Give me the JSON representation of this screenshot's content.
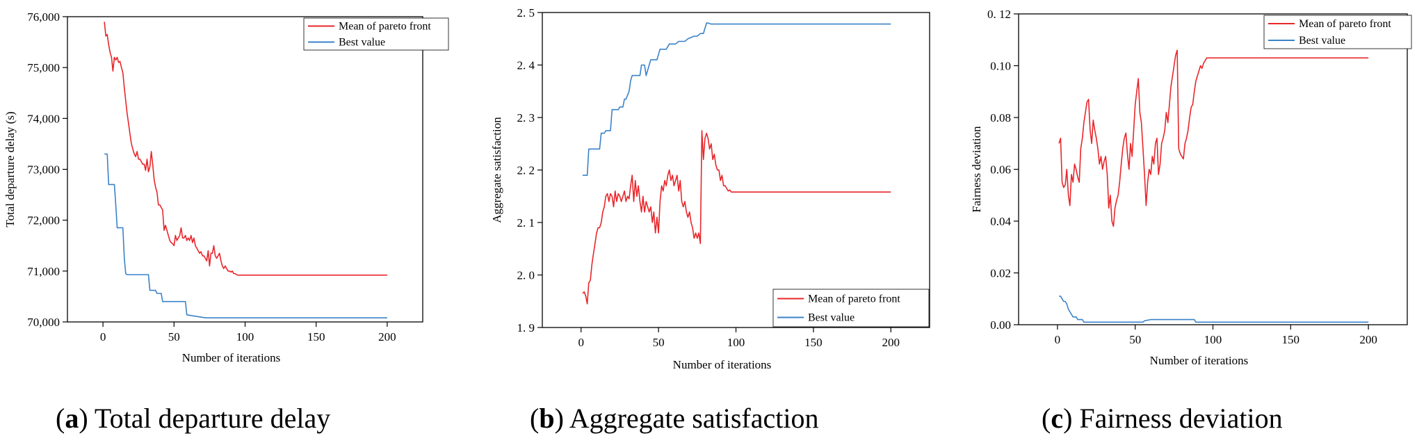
{
  "colors": {
    "mean": "#e8262a",
    "best": "#3a82c8",
    "axis": "#000000"
  },
  "chart_data": [
    {
      "id": "a",
      "type": "line",
      "title": "",
      "xlabel": "Number of iterations",
      "ylabel": "Total departure delay (s)",
      "xlim": [
        -25,
        225
      ],
      "ylim": [
        70000,
        76000
      ],
      "xticks": [
        0,
        50,
        100,
        150,
        200
      ],
      "xtick_labels": [
        "0",
        "50",
        "100",
        "150",
        "200"
      ],
      "yticks": [
        70000,
        71000,
        72000,
        73000,
        74000,
        75000,
        76000
      ],
      "ytick_labels": [
        "70,000",
        "71,000",
        "72,000",
        "73,000",
        "74,000",
        "75,000",
        "76,000"
      ],
      "legend_position": "top-right",
      "legend": [
        "Mean of pareto front",
        "Best value"
      ],
      "caption_letter": "a",
      "caption_text": " Total departure delay",
      "series": [
        {
          "name": "Mean of pareto front",
          "x": [
            1,
            2,
            3,
            4,
            5,
            6,
            7,
            8,
            9,
            10,
            11,
            12,
            13,
            14,
            15,
            16,
            17,
            18,
            19,
            20,
            21,
            22,
            23,
            24,
            25,
            26,
            27,
            28,
            29,
            30,
            31,
            32,
            33,
            34,
            35,
            36,
            37,
            38,
            39,
            40,
            41,
            42,
            43,
            44,
            45,
            46,
            47,
            48,
            49,
            50,
            51,
            52,
            53,
            54,
            55,
            56,
            57,
            58,
            59,
            60,
            61,
            62,
            63,
            64,
            65,
            66,
            67,
            68,
            69,
            70,
            71,
            72,
            73,
            74,
            75,
            76,
            77,
            78,
            79,
            80,
            81,
            82,
            83,
            84,
            85,
            86,
            87,
            88,
            89,
            90,
            91,
            92,
            93,
            94,
            95,
            96,
            97,
            98,
            99,
            100,
            101,
            102,
            103,
            104,
            105,
            200
          ],
          "values": [
            75900,
            75620,
            75650,
            75450,
            75300,
            75200,
            74930,
            75200,
            75150,
            75200,
            75100,
            75120,
            75000,
            74900,
            74600,
            74350,
            74100,
            73900,
            73700,
            73500,
            73400,
            73300,
            73250,
            73350,
            73200,
            73200,
            73150,
            73100,
            73100,
            72980,
            73200,
            72950,
            73050,
            73350,
            73100,
            72800,
            72650,
            72550,
            72300,
            72300,
            72250,
            72200,
            71800,
            71900,
            71800,
            71700,
            71600,
            71560,
            71540,
            71500,
            71700,
            71600,
            71650,
            71700,
            71850,
            71650,
            71650,
            71700,
            71600,
            71650,
            71600,
            71700,
            71560,
            71650,
            71500,
            71450,
            71400,
            71350,
            71380,
            71300,
            71300,
            71250,
            71200,
            71400,
            71100,
            71350,
            71350,
            71500,
            71300,
            71250,
            71300,
            71350,
            71200,
            71100,
            71050,
            71100,
            71050,
            71000,
            71000,
            70980,
            71000,
            70950,
            70950,
            70930,
            70920,
            70920,
            70920,
            70920,
            70920,
            70920,
            70920,
            70920,
            70920,
            70920,
            70920,
            70920
          ]
        },
        {
          "name": "Best value",
          "x": [
            1,
            3,
            4,
            5,
            8,
            9,
            10,
            14,
            15,
            16,
            17,
            18,
            19,
            31,
            32,
            33,
            37,
            38,
            39,
            41,
            42,
            43,
            44,
            58,
            59,
            72,
            200
          ],
          "values": [
            73300,
            73300,
            72700,
            72700,
            72700,
            72300,
            71850,
            71850,
            71250,
            70950,
            70930,
            70930,
            70930,
            70930,
            70930,
            70620,
            70620,
            70560,
            70560,
            70560,
            70400,
            70400,
            70400,
            70400,
            70140,
            70080,
            70080
          ]
        }
      ]
    },
    {
      "id": "b",
      "type": "line",
      "title": "",
      "xlabel": "Number of iterations",
      "ylabel": "Aggregate satisfaction",
      "xlim": [
        -25,
        225
      ],
      "ylim": [
        1.9,
        2.5
      ],
      "xticks": [
        0,
        50,
        100,
        150,
        200
      ],
      "xtick_labels": [
        "0",
        "50",
        "100",
        "150",
        "200"
      ],
      "yticks": [
        1.9,
        2.0,
        2.1,
        2.2,
        2.3,
        2.4,
        2.5
      ],
      "ytick_labels": [
        "1. 9",
        "2. 0",
        "2. 1",
        "2. 2",
        "2. 3",
        "2. 4",
        "2. 5"
      ],
      "legend_position": "bottom-right",
      "legend": [
        "Mean of pareto front",
        "Best value"
      ],
      "caption_letter": "b",
      "caption_text": " Aggregate satisfaction",
      "series": [
        {
          "name": "Mean of pareto front",
          "x": [
            1,
            2,
            3,
            4,
            5,
            6,
            7,
            8,
            9,
            10,
            11,
            12,
            13,
            14,
            15,
            16,
            17,
            18,
            19,
            20,
            21,
            22,
            23,
            24,
            25,
            26,
            27,
            28,
            29,
            30,
            31,
            32,
            33,
            34,
            35,
            36,
            37,
            38,
            39,
            40,
            41,
            42,
            43,
            44,
            45,
            46,
            47,
            48,
            49,
            50,
            51,
            52,
            53,
            54,
            55,
            56,
            57,
            58,
            59,
            60,
            61,
            62,
            63,
            64,
            65,
            66,
            67,
            68,
            69,
            70,
            71,
            72,
            73,
            74,
            75,
            76,
            77,
            78,
            79,
            80,
            81,
            82,
            83,
            84,
            85,
            86,
            87,
            88,
            89,
            90,
            91,
            92,
            93,
            94,
            95,
            96,
            97,
            98,
            99,
            100,
            101,
            102,
            103,
            104,
            105,
            200
          ],
          "values": [
            1.965,
            1.968,
            1.96,
            1.945,
            1.985,
            1.99,
            2.02,
            2.04,
            2.06,
            2.08,
            2.09,
            2.09,
            2.1,
            2.12,
            2.13,
            2.15,
            2.155,
            2.14,
            2.155,
            2.15,
            2.13,
            2.16,
            2.14,
            2.155,
            2.15,
            2.14,
            2.15,
            2.16,
            2.14,
            2.15,
            2.145,
            2.17,
            2.19,
            2.14,
            2.18,
            2.15,
            2.17,
            2.14,
            2.12,
            2.15,
            2.12,
            2.14,
            2.13,
            2.12,
            2.13,
            2.1,
            2.12,
            2.08,
            2.11,
            2.08,
            2.14,
            2.17,
            2.16,
            2.18,
            2.17,
            2.19,
            2.2,
            2.18,
            2.19,
            2.17,
            2.18,
            2.19,
            2.16,
            2.18,
            2.14,
            2.13,
            2.14,
            2.12,
            2.11,
            2.12,
            2.1,
            2.09,
            2.07,
            2.08,
            2.07,
            2.08,
            2.06,
            2.275,
            2.22,
            2.26,
            2.27,
            2.26,
            2.24,
            2.25,
            2.22,
            2.23,
            2.21,
            2.2,
            2.2,
            2.18,
            2.19,
            2.17,
            2.17,
            2.165,
            2.16,
            2.162,
            2.158,
            2.158,
            2.158,
            2.158,
            2.158,
            2.158,
            2.158,
            2.158,
            2.158,
            2.158
          ]
        },
        {
          "name": "Best value",
          "x": [
            1,
            4,
            5,
            8,
            9,
            12,
            13,
            15,
            16,
            19,
            20,
            24,
            25,
            26,
            27,
            28,
            29,
            31,
            32,
            33,
            35,
            36,
            37,
            38,
            39,
            41,
            42,
            44,
            45,
            46,
            47,
            49,
            51,
            52,
            54,
            55,
            57,
            59,
            61,
            63,
            67,
            69,
            73,
            75,
            77,
            79,
            80,
            81,
            82,
            84,
            200
          ],
          "values": [
            2.19,
            2.19,
            2.24,
            2.24,
            2.24,
            2.24,
            2.27,
            2.27,
            2.275,
            2.275,
            2.315,
            2.315,
            2.32,
            2.32,
            2.32,
            2.335,
            2.335,
            2.35,
            2.37,
            2.38,
            2.38,
            2.38,
            2.38,
            2.38,
            2.4,
            2.4,
            2.38,
            2.4,
            2.41,
            2.41,
            2.41,
            2.41,
            2.43,
            2.43,
            2.43,
            2.43,
            2.44,
            2.44,
            2.44,
            2.445,
            2.445,
            2.45,
            2.455,
            2.455,
            2.46,
            2.46,
            2.47,
            2.48,
            2.48,
            2.478,
            2.478
          ]
        }
      ]
    },
    {
      "id": "c",
      "type": "line",
      "title": "",
      "xlabel": "Number of iterations",
      "ylabel": "Fairness deviation",
      "xlim": [
        -25,
        225
      ],
      "ylim": [
        0,
        0.12
      ],
      "xticks": [
        0,
        50,
        100,
        150,
        200
      ],
      "xtick_labels": [
        "0",
        "50",
        "100",
        "150",
        "200"
      ],
      "yticks": [
        0,
        0.02,
        0.04,
        0.06,
        0.08,
        0.1,
        0.12
      ],
      "ytick_labels": [
        "0.00",
        "0.02",
        "0.04",
        "0.06",
        "0.08",
        "0.10",
        "0. 12"
      ],
      "legend_position": "top-right",
      "legend": [
        "Mean of pareto front",
        "Best value"
      ],
      "caption_letter": "c",
      "caption_text": " Fairness deviation",
      "series": [
        {
          "name": "Mean of pareto front",
          "x": [
            1,
            2,
            3,
            4,
            5,
            6,
            7,
            8,
            9,
            10,
            11,
            12,
            13,
            14,
            15,
            16,
            17,
            18,
            19,
            20,
            21,
            22,
            23,
            24,
            25,
            26,
            27,
            28,
            29,
            30,
            31,
            32,
            33,
            34,
            35,
            36,
            37,
            38,
            39,
            40,
            41,
            42,
            43,
            44,
            45,
            46,
            47,
            48,
            49,
            50,
            51,
            52,
            53,
            54,
            55,
            56,
            57,
            58,
            59,
            60,
            61,
            62,
            63,
            64,
            65,
            66,
            67,
            68,
            69,
            70,
            71,
            72,
            73,
            74,
            75,
            76,
            77,
            78,
            79,
            80,
            81,
            82,
            83,
            84,
            85,
            86,
            87,
            88,
            89,
            90,
            91,
            92,
            93,
            94,
            95,
            96,
            97,
            98,
            99,
            100,
            101,
            102,
            103,
            104,
            105,
            200
          ],
          "values": [
            0.07,
            0.072,
            0.055,
            0.053,
            0.054,
            0.06,
            0.05,
            0.046,
            0.058,
            0.055,
            0.062,
            0.06,
            0.057,
            0.055,
            0.068,
            0.072,
            0.078,
            0.082,
            0.086,
            0.087,
            0.075,
            0.07,
            0.079,
            0.075,
            0.072,
            0.068,
            0.062,
            0.065,
            0.06,
            0.063,
            0.065,
            0.058,
            0.045,
            0.05,
            0.04,
            0.038,
            0.045,
            0.048,
            0.05,
            0.055,
            0.062,
            0.068,
            0.072,
            0.074,
            0.066,
            0.06,
            0.07,
            0.065,
            0.075,
            0.085,
            0.09,
            0.095,
            0.082,
            0.078,
            0.068,
            0.058,
            0.046,
            0.055,
            0.06,
            0.058,
            0.065,
            0.062,
            0.07,
            0.072,
            0.058,
            0.062,
            0.07,
            0.072,
            0.075,
            0.082,
            0.078,
            0.085,
            0.092,
            0.096,
            0.1,
            0.104,
            0.106,
            0.068,
            0.066,
            0.065,
            0.064,
            0.07,
            0.072,
            0.075,
            0.08,
            0.084,
            0.085,
            0.09,
            0.094,
            0.096,
            0.098,
            0.1,
            0.099,
            0.101,
            0.102,
            0.103,
            0.103,
            0.103,
            0.103,
            0.103,
            0.103,
            0.103,
            0.103,
            0.103,
            0.103,
            0.103
          ]
        },
        {
          "name": "Best value",
          "x": [
            1,
            2,
            3,
            4,
            5,
            6,
            7,
            8,
            9,
            10,
            11,
            12,
            13,
            14,
            15,
            16,
            17,
            18,
            19,
            20,
            30,
            40,
            50,
            55,
            56,
            60,
            70,
            80,
            85,
            88,
            89,
            100,
            150,
            200
          ],
          "values": [
            0.011,
            0.011,
            0.01,
            0.009,
            0.009,
            0.008,
            0.006,
            0.005,
            0.004,
            0.003,
            0.003,
            0.003,
            0.002,
            0.002,
            0.002,
            0.002,
            0.001,
            0.001,
            0.001,
            0.001,
            0.001,
            0.001,
            0.001,
            0.001,
            0.0015,
            0.002,
            0.002,
            0.002,
            0.002,
            0.002,
            0.001,
            0.001,
            0.001,
            0.001
          ]
        }
      ]
    }
  ]
}
